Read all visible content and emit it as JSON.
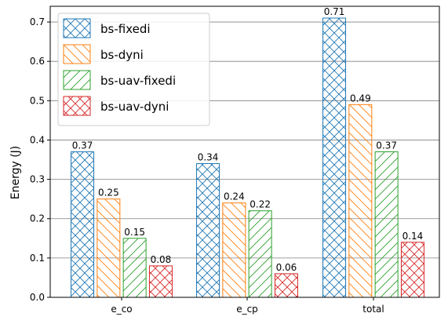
{
  "chart_data": {
    "type": "bar",
    "title": "",
    "xlabel": "",
    "ylabel": "Energy (J)",
    "categories": [
      "e_co",
      "e_cp",
      "total"
    ],
    "ylim": [
      0,
      0.74
    ],
    "yticks": [
      "0.0",
      "0.1",
      "0.2",
      "0.3",
      "0.4",
      "0.5",
      "0.6",
      "0.7"
    ],
    "grid": "horizontal",
    "legend_position": "top-left",
    "series": [
      {
        "name": "bs-fixedi",
        "color": "#1f77b4",
        "hatch": "crosshatch",
        "values": [
          0.37,
          0.34,
          0.71
        ],
        "labels": [
          "0.37",
          "0.34",
          "0.71"
        ]
      },
      {
        "name": "bs-dyni",
        "color": "#ff7f0e",
        "hatch": "backslash",
        "values": [
          0.25,
          0.24,
          0.49
        ],
        "labels": [
          "0.25",
          "0.24",
          "0.49"
        ]
      },
      {
        "name": "bs-uav-fixedi",
        "color": "#2ca02c",
        "hatch": "slash",
        "values": [
          0.15,
          0.22,
          0.37
        ],
        "labels": [
          "0.15",
          "0.22",
          "0.37"
        ]
      },
      {
        "name": "bs-uav-dyni",
        "color": "#d62728",
        "hatch": "crosshatch",
        "values": [
          0.08,
          0.06,
          0.14
        ],
        "labels": [
          "0.08",
          "0.06",
          "0.14"
        ]
      }
    ]
  }
}
